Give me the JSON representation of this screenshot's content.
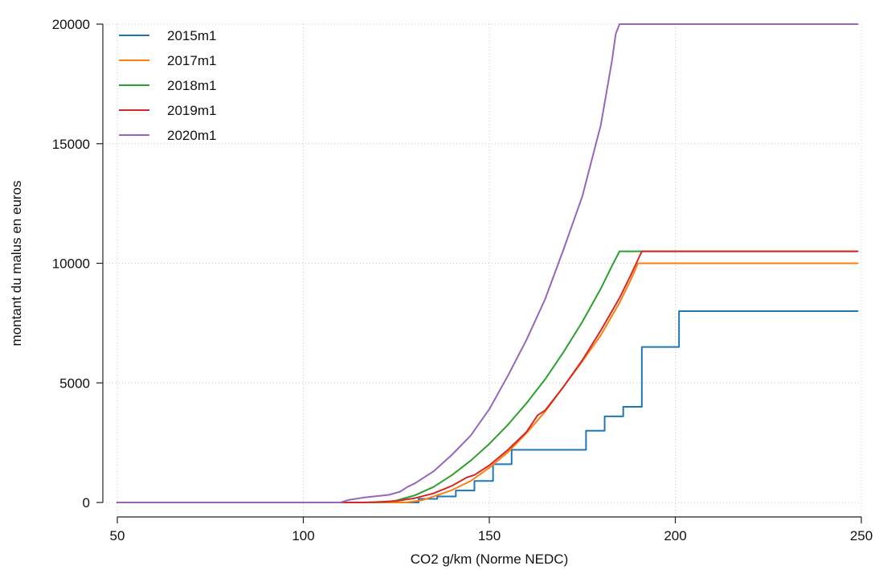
{
  "chart_data": {
    "type": "line",
    "title": "",
    "xlabel": "CO2 g/km (Norme NEDC)",
    "ylabel": "montant du malus en euros",
    "xlim": [
      50,
      250
    ],
    "ylim": [
      0,
      20000
    ],
    "x_ticks": [
      50,
      100,
      150,
      200,
      250
    ],
    "y_ticks": [
      0,
      5000,
      10000,
      15000,
      20000
    ],
    "grid": "dotted",
    "legend_position": "top-left",
    "series": [
      {
        "name": "2015m1",
        "color": "#1f77b4",
        "step": true,
        "points": [
          [
            50,
            0
          ],
          [
            131,
            0
          ],
          [
            131,
            150
          ],
          [
            136,
            150
          ],
          [
            136,
            250
          ],
          [
            141,
            250
          ],
          [
            141,
            500
          ],
          [
            146,
            500
          ],
          [
            146,
            900
          ],
          [
            151,
            900
          ],
          [
            151,
            1600
          ],
          [
            156,
            1600
          ],
          [
            156,
            2200
          ],
          [
            176,
            2200
          ],
          [
            176,
            3000
          ],
          [
            181,
            3000
          ],
          [
            181,
            3600
          ],
          [
            186,
            3600
          ],
          [
            186,
            4000
          ],
          [
            191,
            4000
          ],
          [
            191,
            6500
          ],
          [
            201,
            6500
          ],
          [
            201,
            8000
          ],
          [
            249,
            8000
          ]
        ]
      },
      {
        "name": "2017m1",
        "color": "#ff7f0e",
        "step": false,
        "points": [
          [
            50,
            0
          ],
          [
            126,
            0
          ],
          [
            128,
            10
          ],
          [
            130,
            50
          ],
          [
            132,
            100
          ],
          [
            135,
            250
          ],
          [
            140,
            520
          ],
          [
            145,
            900
          ],
          [
            150,
            1450
          ],
          [
            155,
            2100
          ],
          [
            160,
            2900
          ],
          [
            165,
            3800
          ],
          [
            170,
            4850
          ],
          [
            175,
            5900
          ],
          [
            180,
            7000
          ],
          [
            185,
            8350
          ],
          [
            188,
            9300
          ],
          [
            190,
            10000
          ],
          [
            249,
            10000
          ]
        ]
      },
      {
        "name": "2018m1",
        "color": "#2ca02c",
        "step": false,
        "points": [
          [
            50,
            0
          ],
          [
            119,
            0
          ],
          [
            122,
            20
          ],
          [
            125,
            80
          ],
          [
            130,
            300
          ],
          [
            135,
            650
          ],
          [
            140,
            1150
          ],
          [
            145,
            1750
          ],
          [
            150,
            2450
          ],
          [
            155,
            3250
          ],
          [
            160,
            4150
          ],
          [
            165,
            5150
          ],
          [
            170,
            6300
          ],
          [
            175,
            7550
          ],
          [
            180,
            8950
          ],
          [
            183,
            9900
          ],
          [
            185,
            10500
          ],
          [
            249,
            10500
          ]
        ]
      },
      {
        "name": "2019m1",
        "color": "#d62728",
        "step": false,
        "points": [
          [
            50,
            0
          ],
          [
            116,
            0
          ],
          [
            120,
            20
          ],
          [
            125,
            60
          ],
          [
            130,
            180
          ],
          [
            135,
            380
          ],
          [
            140,
            700
          ],
          [
            144,
            1050
          ],
          [
            146,
            1150
          ],
          [
            150,
            1550
          ],
          [
            155,
            2200
          ],
          [
            160,
            2950
          ],
          [
            163,
            3650
          ],
          [
            165,
            3850
          ],
          [
            170,
            4850
          ],
          [
            175,
            5950
          ],
          [
            180,
            7200
          ],
          [
            185,
            8550
          ],
          [
            188,
            9500
          ],
          [
            191,
            10500
          ],
          [
            249,
            10500
          ]
        ]
      },
      {
        "name": "2020m1",
        "color": "#9467bd",
        "step": false,
        "points": [
          [
            50,
            0
          ],
          [
            110,
            0
          ],
          [
            112,
            100
          ],
          [
            116,
            200
          ],
          [
            120,
            270
          ],
          [
            123,
            320
          ],
          [
            126,
            450
          ],
          [
            128,
            650
          ],
          [
            130,
            800
          ],
          [
            135,
            1300
          ],
          [
            140,
            2000
          ],
          [
            145,
            2800
          ],
          [
            150,
            3900
          ],
          [
            155,
            5300
          ],
          [
            160,
            6800
          ],
          [
            165,
            8500
          ],
          [
            170,
            10600
          ],
          [
            175,
            12800
          ],
          [
            180,
            15800
          ],
          [
            183,
            18500
          ],
          [
            184,
            19600
          ],
          [
            185,
            20000
          ],
          [
            249,
            20000
          ]
        ]
      }
    ]
  }
}
